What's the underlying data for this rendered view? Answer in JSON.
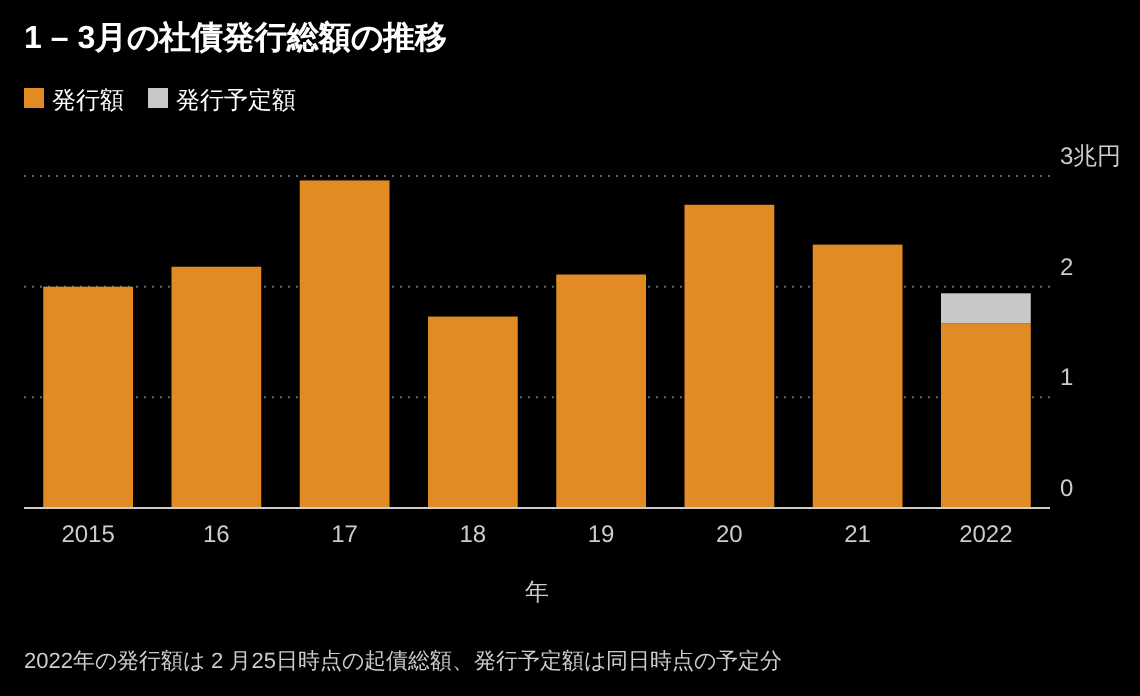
{
  "chart_data": {
    "type": "bar",
    "title": "1 – 3月の社債発行総額の推移",
    "categories": [
      "2015",
      "16",
      "17",
      "18",
      "19",
      "20",
      "21",
      "2022"
    ],
    "series": [
      {
        "name": "発行額",
        "color": "#e08b24",
        "values": [
          2.0,
          2.18,
          2.96,
          1.73,
          2.11,
          2.74,
          2.38,
          1.67
        ]
      },
      {
        "name": "発行予定額",
        "color": "#c8c8c8",
        "values": [
          null,
          null,
          null,
          null,
          null,
          null,
          null,
          0.27
        ]
      }
    ],
    "stacked": true,
    "xlabel": "年",
    "ylim": [
      0,
      3
    ],
    "yticks": [
      0,
      1,
      2,
      {
        "value": 3,
        "label": "3兆円"
      }
    ],
    "grid": "y",
    "legend": "top left",
    "annotations": [
      "2022年の発行額は 2 月25日時点の起債総額、発行予定額は同日時点の予定分"
    ]
  }
}
